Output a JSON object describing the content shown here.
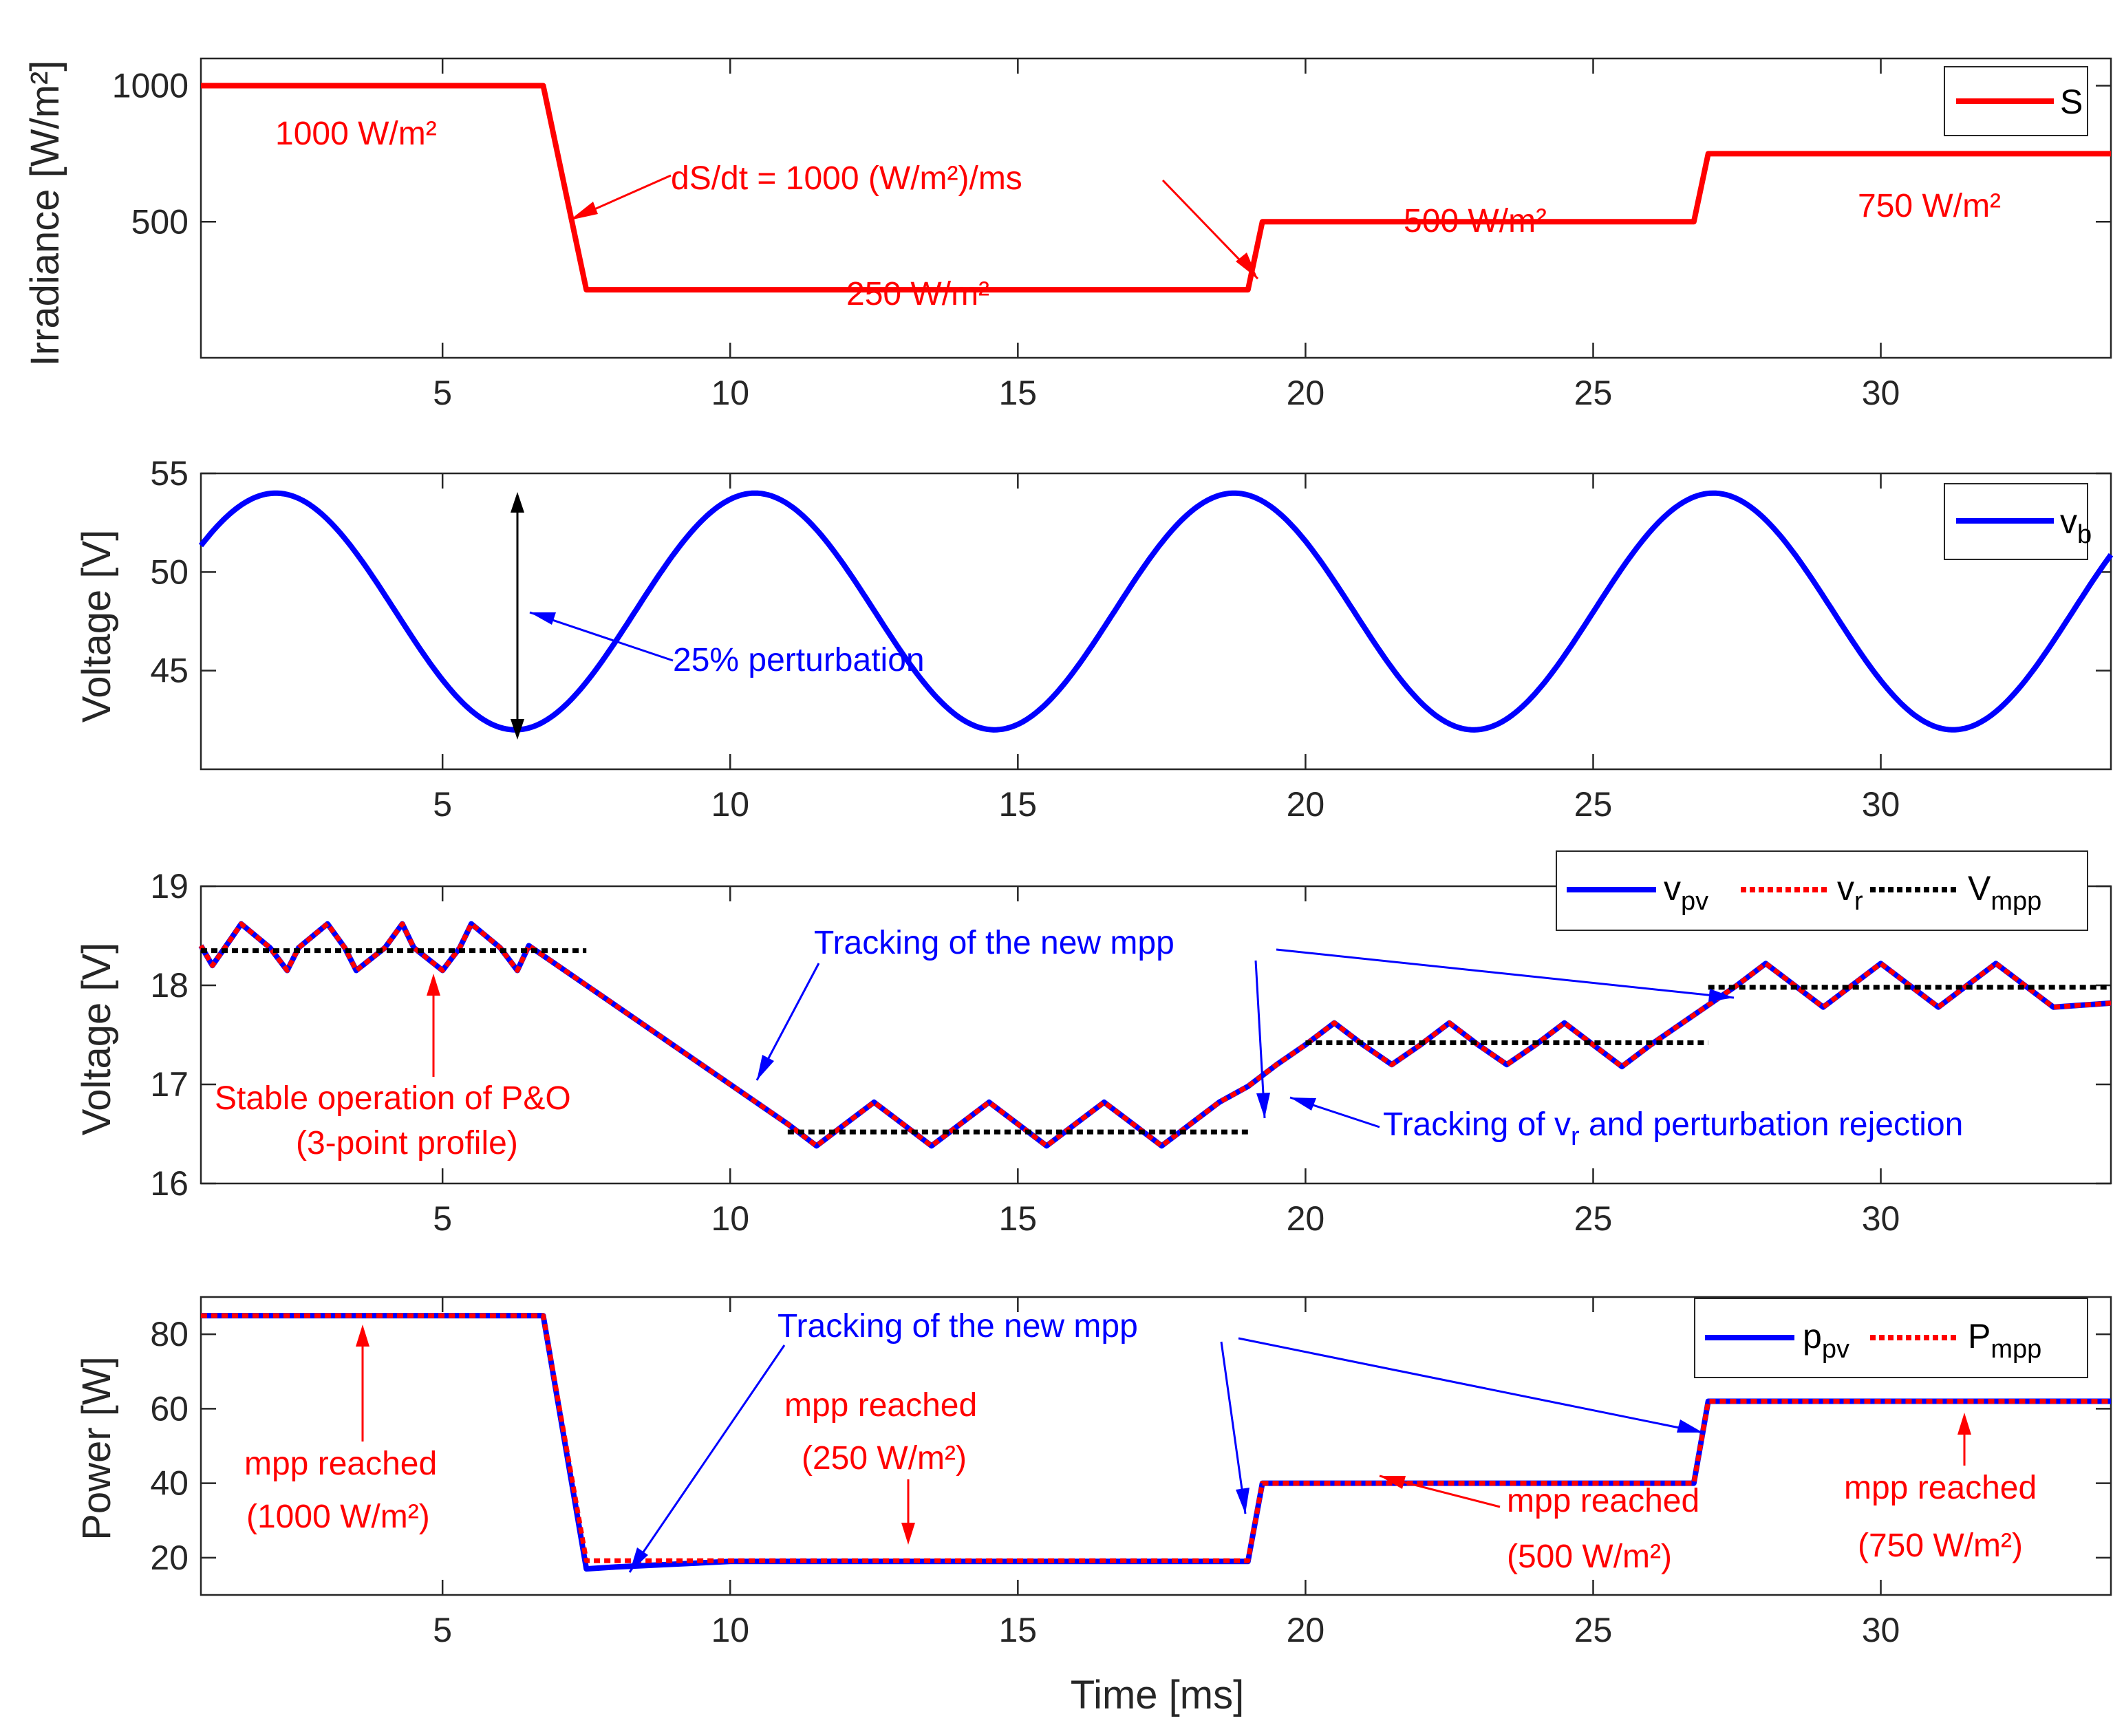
{
  "colors": {
    "red": "#ff0000",
    "blue": "#0000ff",
    "black": "#000000",
    "axis": "#262626"
  },
  "chart_data": [
    {
      "type": "line",
      "ylabel": "Irradiance [W/m²]",
      "xlim": [
        0.8,
        34
      ],
      "ylim": [
        0,
        1100
      ],
      "xticks": [
        5,
        10,
        15,
        20,
        25,
        30
      ],
      "yticks": [
        500,
        1000
      ],
      "legend": "top-right",
      "series": [
        {
          "name": "S",
          "color": "#ff0000",
          "x": [
            0.8,
            6.75,
            7.5,
            19.0,
            19.25,
            26.75,
            27.0,
            34.0
          ],
          "y": [
            1000,
            1000,
            250,
            250,
            500,
            500,
            750,
            750
          ]
        }
      ],
      "annotations": [
        {
          "text": "1000 W/m²",
          "color": "#ff0000"
        },
        {
          "text": "250 W/m²",
          "color": "#ff0000"
        },
        {
          "text": "500 W/m²",
          "color": "#ff0000"
        },
        {
          "text": "750 W/m²",
          "color": "#ff0000"
        },
        {
          "text": "dS/dt = 1000 (W/m²)/ms",
          "color": "#ff0000"
        }
      ]
    },
    {
      "type": "line",
      "ylabel": "Voltage [V]",
      "xlim": [
        0.8,
        34
      ],
      "ylim": [
        40,
        55
      ],
      "xticks": [
        5,
        10,
        15,
        20,
        25,
        30
      ],
      "yticks": [
        45,
        50,
        55
      ],
      "legend": "top-right",
      "series": [
        {
          "name": "v_b",
          "color": "#0000ff",
          "mean": 48,
          "amplitude": 6,
          "period_ms": 8.33,
          "peak_time_ms": 2.1
        }
      ],
      "annotations": [
        {
          "text": "25% perturbation",
          "color": "#0000ff"
        }
      ]
    },
    {
      "type": "line",
      "ylabel": "Voltage [V]",
      "xlim": [
        0.8,
        34
      ],
      "ylim": [
        16,
        19
      ],
      "xticks": [
        5,
        10,
        15,
        20,
        25,
        30
      ],
      "yticks": [
        16,
        17,
        18,
        19
      ],
      "legend": "top-right",
      "series": [
        {
          "name": "v_pv",
          "color": "#0000ff",
          "x": [
            0.8,
            1.0,
            1.3,
            1.5,
            2.0,
            2.3,
            2.5,
            3.0,
            3.3,
            3.5,
            4.0,
            4.3,
            4.5,
            5.0,
            5.3,
            5.5,
            6.0,
            6.3,
            6.5,
            7.0,
            7.5,
            8.0,
            8.5,
            9.0,
            9.5,
            10.0,
            10.5,
            11.0,
            11.5,
            12.0,
            12.5,
            13.0,
            13.5,
            14.0,
            14.5,
            15.0,
            15.5,
            16.0,
            16.5,
            17.0,
            17.5,
            18.0,
            18.5,
            19.0,
            19.5,
            20.0,
            20.5,
            21.0,
            21.5,
            22.0,
            22.5,
            23.0,
            23.5,
            24.0,
            24.5,
            25.0,
            25.5,
            26.0,
            26.5,
            27.0,
            27.5,
            28.0,
            28.5,
            29.0,
            29.5,
            30.0,
            30.5,
            31.0,
            31.5,
            32.0,
            32.5,
            33.0,
            33.5,
            34.0
          ],
          "y": [
            18.4,
            18.2,
            18.45,
            18.62,
            18.38,
            18.15,
            18.38,
            18.62,
            18.38,
            18.15,
            18.38,
            18.62,
            18.38,
            18.15,
            18.38,
            18.62,
            18.38,
            18.15,
            18.4,
            18.2,
            18.0,
            17.8,
            17.6,
            17.4,
            17.2,
            17.0,
            16.8,
            16.6,
            16.38,
            16.6,
            16.82,
            16.6,
            16.38,
            16.6,
            16.82,
            16.6,
            16.38,
            16.6,
            16.82,
            16.6,
            16.38,
            16.6,
            16.82,
            16.98,
            17.2,
            17.4,
            17.62,
            17.4,
            17.2,
            17.4,
            17.62,
            17.4,
            17.2,
            17.4,
            17.62,
            17.4,
            17.18,
            17.4,
            17.6,
            17.8,
            18.0,
            18.22,
            18.0,
            17.78,
            18.0,
            18.22,
            18.0,
            17.78,
            18.0,
            18.22,
            18.0,
            17.78,
            17.8,
            17.82
          ]
        },
        {
          "name": "v_r",
          "color": "#ff0000",
          "x": [
            0.8,
            1.0,
            1.3,
            1.5,
            2.0,
            2.3,
            2.5,
            3.0,
            3.3,
            3.5,
            4.0,
            4.3,
            4.5,
            5.0,
            5.3,
            5.5,
            6.0,
            6.3,
            6.5,
            7.0,
            7.5,
            8.0,
            8.5,
            9.0,
            9.5,
            10.0,
            10.5,
            11.0,
            11.5,
            12.0,
            12.5,
            13.0,
            13.5,
            14.0,
            14.5,
            15.0,
            15.5,
            16.0,
            16.5,
            17.0,
            17.5,
            18.0,
            18.5,
            19.0,
            19.5,
            20.0,
            20.5,
            21.0,
            21.5,
            22.0,
            22.5,
            23.0,
            23.5,
            24.0,
            24.5,
            25.0,
            25.5,
            26.0,
            26.5,
            27.0,
            27.5,
            28.0,
            28.5,
            29.0,
            29.5,
            30.0,
            30.5,
            31.0,
            31.5,
            32.0,
            32.5,
            33.0,
            33.5,
            34.0
          ],
          "y": [
            18.4,
            18.2,
            18.45,
            18.62,
            18.38,
            18.15,
            18.38,
            18.62,
            18.38,
            18.15,
            18.38,
            18.62,
            18.38,
            18.15,
            18.38,
            18.62,
            18.38,
            18.15,
            18.4,
            18.2,
            18.0,
            17.8,
            17.6,
            17.4,
            17.2,
            17.0,
            16.8,
            16.6,
            16.38,
            16.6,
            16.82,
            16.6,
            16.38,
            16.6,
            16.82,
            16.6,
            16.38,
            16.6,
            16.82,
            16.6,
            16.38,
            16.6,
            16.82,
            16.98,
            17.2,
            17.4,
            17.62,
            17.4,
            17.2,
            17.4,
            17.62,
            17.4,
            17.2,
            17.4,
            17.62,
            17.4,
            17.18,
            17.4,
            17.6,
            17.8,
            18.0,
            18.22,
            18.0,
            17.78,
            18.0,
            18.22,
            18.0,
            17.78,
            18.0,
            18.22,
            18.0,
            17.78,
            17.8,
            17.82
          ]
        },
        {
          "name": "V_mpp",
          "color": "#000000",
          "segments": [
            {
              "x": [
                0.8,
                7.5
              ],
              "y": 18.35
            },
            {
              "x": [
                11.0,
                19.0
              ],
              "y": 16.52
            },
            {
              "x": [
                20.0,
                27.0
              ],
              "y": 17.42
            },
            {
              "x": [
                27.0,
                34.0
              ],
              "y": 17.98
            }
          ]
        }
      ],
      "annotations": [
        {
          "text": "Tracking of the new mpp",
          "color": "#0000ff"
        },
        {
          "text": "Stable operation of P&O",
          "color": "#ff0000"
        },
        {
          "text": "(3-point profile)",
          "color": "#ff0000"
        },
        {
          "text": "Tracking of v",
          "sub": "r",
          "text2": " and perturbation rejection",
          "color": "#0000ff"
        }
      ]
    },
    {
      "type": "line",
      "ylabel": "Power [W]",
      "xlabel": "Time [ms]",
      "xlim": [
        0.8,
        34
      ],
      "ylim": [
        10,
        90
      ],
      "xticks": [
        5,
        10,
        15,
        20,
        25,
        30
      ],
      "yticks": [
        20,
        40,
        60,
        80
      ],
      "legend": "top-right",
      "series": [
        {
          "name": "p_pv",
          "color": "#0000ff",
          "x": [
            0.8,
            6.75,
            7.5,
            8.0,
            10.0,
            19.0,
            19.25,
            26.75,
            27.0,
            34.0
          ],
          "y": [
            85,
            85,
            17,
            17.5,
            19,
            19,
            40,
            40,
            62,
            62
          ]
        },
        {
          "name": "P_mpp",
          "color": "#ff0000",
          "x": [
            0.8,
            6.75,
            7.5,
            19.0,
            19.25,
            26.75,
            27.0,
            34.0
          ],
          "y": [
            85,
            85,
            19.2,
            19.2,
            40,
            40,
            62,
            62
          ]
        }
      ],
      "annotations": [
        {
          "text": "Tracking of the new mpp",
          "color": "#0000ff"
        },
        {
          "text": "mpp reached",
          "color": "#ff0000"
        },
        {
          "text": "(1000 W/m²)",
          "color": "#ff0000"
        },
        {
          "text": "mpp reached",
          "color": "#ff0000"
        },
        {
          "text": "(250 W/m²)",
          "color": "#ff0000"
        },
        {
          "text": "mpp reached",
          "color": "#ff0000"
        },
        {
          "text": "(500 W/m²)",
          "color": "#ff0000"
        },
        {
          "text": "mpp reached",
          "color": "#ff0000"
        },
        {
          "text": "(750 W/m²)",
          "color": "#ff0000"
        }
      ]
    }
  ]
}
